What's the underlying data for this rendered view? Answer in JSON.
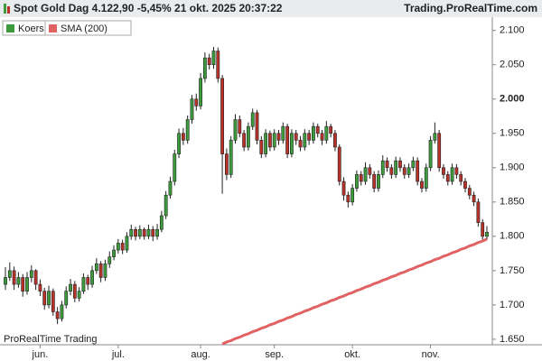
{
  "header": {
    "title": "Spot  Gold Dag 4.122,90 -5,45% 21 okt. 2025 20:37:22",
    "site": "Trading.ProRealTime.com"
  },
  "chart_data": {
    "type": "candlestick",
    "watermark": "ProRealTime Trading",
    "ylim": [
      1.642,
      2.118
    ],
    "xlim": [
      -1.25,
      112.25
    ],
    "yticks": [
      {
        "value": 1.65,
        "label": "1.650"
      },
      {
        "value": 1.7,
        "label": "1.700"
      },
      {
        "value": 1.75,
        "label": "1.750"
      },
      {
        "value": 1.8,
        "label": "1.800"
      },
      {
        "value": 1.85,
        "label": "1.850"
      },
      {
        "value": 1.9,
        "label": "1.900"
      },
      {
        "value": 1.95,
        "label": "1.950"
      },
      {
        "value": 2.0,
        "label": "2.000"
      },
      {
        "value": 2.05,
        "label": "2.050"
      },
      {
        "value": 2.1,
        "label": "2.100"
      }
    ],
    "xticks": [
      {
        "value": 8,
        "label": "jun."
      },
      {
        "value": 26,
        "label": "jul."
      },
      {
        "value": 45,
        "label": "aug."
      },
      {
        "value": 62,
        "label": "sep."
      },
      {
        "value": 80,
        "label": "okt."
      },
      {
        "value": 98,
        "label": "nov."
      }
    ],
    "series": [
      {
        "name": "Koers",
        "color": "#3c9c3c",
        "down_color": "#b8322a",
        "candles": [
          [
            1.73,
            1.755,
            1.722,
            1.74
          ],
          [
            1.74,
            1.762,
            1.735,
            1.75
          ],
          [
            1.75,
            1.756,
            1.722,
            1.73
          ],
          [
            1.73,
            1.748,
            1.725,
            1.74
          ],
          [
            1.74,
            1.745,
            1.712,
            1.72
          ],
          [
            1.72,
            1.748,
            1.715,
            1.74
          ],
          [
            1.74,
            1.758,
            1.733,
            1.75
          ],
          [
            1.75,
            1.752,
            1.722,
            1.73
          ],
          [
            1.73,
            1.737,
            1.713,
            1.72
          ],
          [
            1.72,
            1.725,
            1.693,
            1.7
          ],
          [
            1.7,
            1.728,
            1.695,
            1.72
          ],
          [
            1.72,
            1.724,
            1.684,
            1.69
          ],
          [
            1.69,
            1.697,
            1.672,
            1.68
          ],
          [
            1.68,
            1.706,
            1.676,
            1.7
          ],
          [
            1.7,
            1.727,
            1.695,
            1.72
          ],
          [
            1.72,
            1.738,
            1.714,
            1.73
          ],
          [
            1.73,
            1.735,
            1.704,
            1.71
          ],
          [
            1.71,
            1.726,
            1.705,
            1.72
          ],
          [
            1.72,
            1.746,
            1.716,
            1.74
          ],
          [
            1.74,
            1.744,
            1.722,
            1.73
          ],
          [
            1.73,
            1.757,
            1.725,
            1.75
          ],
          [
            1.75,
            1.768,
            1.745,
            1.76
          ],
          [
            1.76,
            1.764,
            1.733,
            1.74
          ],
          [
            1.74,
            1.766,
            1.735,
            1.76
          ],
          [
            1.76,
            1.778,
            1.754,
            1.77
          ],
          [
            1.77,
            1.787,
            1.765,
            1.78
          ],
          [
            1.78,
            1.796,
            1.775,
            1.79
          ],
          [
            1.79,
            1.795,
            1.774,
            1.78
          ],
          [
            1.78,
            1.806,
            1.776,
            1.8
          ],
          [
            1.8,
            1.817,
            1.795,
            1.81
          ],
          [
            1.81,
            1.814,
            1.794,
            1.8
          ],
          [
            1.8,
            1.816,
            1.796,
            1.81
          ],
          [
            1.81,
            1.813,
            1.795,
            1.8
          ],
          [
            1.8,
            1.817,
            1.796,
            1.81
          ],
          [
            1.81,
            1.815,
            1.793,
            1.8
          ],
          [
            1.8,
            1.818,
            1.795,
            1.81
          ],
          [
            1.81,
            1.837,
            1.806,
            1.83
          ],
          [
            1.83,
            1.866,
            1.825,
            1.86
          ],
          [
            1.86,
            1.887,
            1.855,
            1.88
          ],
          [
            1.88,
            1.926,
            1.874,
            1.92
          ],
          [
            1.92,
            1.957,
            1.914,
            1.95
          ],
          [
            1.95,
            1.958,
            1.933,
            1.94
          ],
          [
            1.94,
            1.976,
            1.935,
            1.97
          ],
          [
            1.97,
            2.006,
            1.964,
            2.0
          ],
          [
            2.0,
            2.008,
            1.983,
            1.99
          ],
          [
            1.99,
            2.038,
            1.985,
            2.03
          ],
          [
            2.03,
            2.068,
            2.024,
            2.06
          ],
          [
            2.06,
            2.066,
            2.043,
            2.05
          ],
          [
            2.05,
            2.076,
            2.044,
            2.07
          ],
          [
            2.07,
            2.075,
            2.024,
            2.03
          ],
          [
            2.03,
            2.035,
            1.862,
            1.92
          ],
          [
            1.92,
            1.928,
            1.882,
            1.89
          ],
          [
            1.89,
            1.946,
            1.885,
            1.94
          ],
          [
            1.94,
            1.978,
            1.935,
            1.97
          ],
          [
            1.97,
            1.976,
            1.944,
            1.95
          ],
          [
            1.95,
            1.955,
            1.924,
            1.93
          ],
          [
            1.93,
            1.966,
            1.925,
            1.96
          ],
          [
            1.96,
            1.986,
            1.955,
            1.98
          ],
          [
            1.98,
            1.984,
            1.934,
            1.94
          ],
          [
            1.94,
            1.946,
            1.914,
            1.92
          ],
          [
            1.92,
            1.956,
            1.915,
            1.95
          ],
          [
            1.95,
            1.954,
            1.924,
            1.93
          ],
          [
            1.93,
            1.956,
            1.925,
            1.95
          ],
          [
            1.95,
            1.955,
            1.933,
            1.94
          ],
          [
            1.94,
            1.966,
            1.935,
            1.96
          ],
          [
            1.96,
            1.964,
            1.914,
            1.92
          ],
          [
            1.92,
            1.956,
            1.915,
            1.95
          ],
          [
            1.95,
            1.955,
            1.933,
            1.94
          ],
          [
            1.94,
            1.946,
            1.924,
            1.93
          ],
          [
            1.93,
            1.956,
            1.925,
            1.95
          ],
          [
            1.95,
            1.955,
            1.933,
            1.94
          ],
          [
            1.94,
            1.966,
            1.935,
            1.96
          ],
          [
            1.96,
            1.964,
            1.944,
            1.95
          ],
          [
            1.95,
            1.955,
            1.933,
            1.94
          ],
          [
            1.94,
            1.968,
            1.935,
            1.96
          ],
          [
            1.96,
            1.964,
            1.944,
            1.95
          ],
          [
            1.95,
            1.955,
            1.924,
            1.93
          ],
          [
            1.93,
            1.934,
            1.874,
            1.88
          ],
          [
            1.88,
            1.886,
            1.852,
            1.86
          ],
          [
            1.86,
            1.865,
            1.842,
            1.85
          ],
          [
            1.85,
            1.876,
            1.845,
            1.87
          ],
          [
            1.87,
            1.896,
            1.865,
            1.89
          ],
          [
            1.89,
            1.895,
            1.874,
            1.88
          ],
          [
            1.88,
            1.908,
            1.875,
            1.9
          ],
          [
            1.9,
            1.905,
            1.884,
            1.89
          ],
          [
            1.89,
            1.895,
            1.864,
            1.87
          ],
          [
            1.87,
            1.896,
            1.865,
            1.89
          ],
          [
            1.89,
            1.918,
            1.885,
            1.91
          ],
          [
            1.91,
            1.915,
            1.894,
            1.9
          ],
          [
            1.9,
            1.905,
            1.884,
            1.89
          ],
          [
            1.89,
            1.916,
            1.885,
            1.91
          ],
          [
            1.91,
            1.915,
            1.894,
            1.9
          ],
          [
            1.9,
            1.905,
            1.884,
            1.89
          ],
          [
            1.89,
            1.906,
            1.885,
            1.9
          ],
          [
            1.9,
            1.916,
            1.895,
            1.91
          ],
          [
            1.91,
            1.915,
            1.874,
            1.88
          ],
          [
            1.88,
            1.885,
            1.864,
            1.87
          ],
          [
            1.87,
            1.906,
            1.865,
            1.9
          ],
          [
            1.9,
            1.946,
            1.895,
            1.94
          ],
          [
            1.94,
            1.966,
            1.935,
            1.95
          ],
          [
            1.95,
            1.955,
            1.894,
            1.9
          ],
          [
            1.9,
            1.905,
            1.884,
            1.89
          ],
          [
            1.89,
            1.895,
            1.874,
            1.88
          ],
          [
            1.88,
            1.906,
            1.875,
            1.9
          ],
          [
            1.9,
            1.905,
            1.884,
            1.89
          ],
          [
            1.89,
            1.895,
            1.874,
            1.88
          ],
          [
            1.88,
            1.885,
            1.864,
            1.87
          ],
          [
            1.87,
            1.875,
            1.854,
            1.86
          ],
          [
            1.86,
            1.865,
            1.844,
            1.85
          ],
          [
            1.85,
            1.855,
            1.814,
            1.82
          ],
          [
            1.82,
            1.825,
            1.795,
            1.8
          ],
          [
            1.8,
            1.815,
            1.795,
            1.806
          ]
        ]
      },
      {
        "name": "SMA (200)",
        "color": "#e06262",
        "values": [
          null,
          null,
          null,
          null,
          null,
          null,
          null,
          null,
          null,
          null,
          null,
          null,
          null,
          null,
          null,
          null,
          null,
          null,
          null,
          null,
          null,
          null,
          null,
          null,
          null,
          null,
          null,
          null,
          null,
          null,
          null,
          null,
          null,
          null,
          null,
          null,
          null,
          null,
          null,
          null,
          null,
          null,
          null,
          null,
          null,
          null,
          null,
          null,
          null,
          null,
          1.643,
          1.646,
          1.648,
          1.651,
          1.653,
          1.656,
          1.658,
          1.661,
          1.663,
          1.666,
          1.668,
          1.671,
          1.673,
          1.676,
          1.678,
          1.681,
          1.683,
          1.686,
          1.688,
          1.691,
          1.693,
          1.696,
          1.698,
          1.701,
          1.703,
          1.706,
          1.708,
          1.711,
          1.713,
          1.716,
          1.718,
          1.721,
          1.723,
          1.726,
          1.728,
          1.731,
          1.733,
          1.736,
          1.738,
          1.741,
          1.743,
          1.746,
          1.748,
          1.751,
          1.753,
          1.756,
          1.758,
          1.761,
          1.763,
          1.766,
          1.768,
          1.771,
          1.773,
          1.776,
          1.778,
          1.781,
          1.783,
          1.786,
          1.788,
          1.791,
          1.793,
          1.796
        ]
      }
    ]
  }
}
